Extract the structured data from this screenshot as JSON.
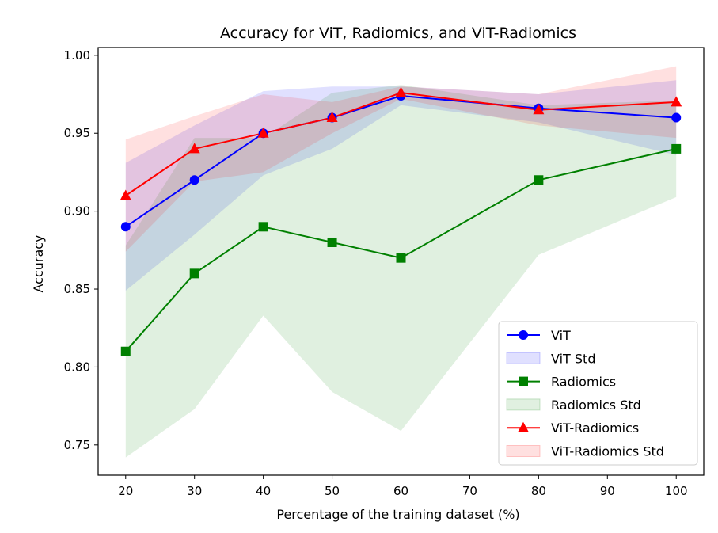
{
  "chart_data": {
    "type": "line",
    "title": "Accuracy for ViT, Radiomics, and ViT-Radiomics",
    "xlabel": "Percentage of the training dataset (%)",
    "ylabel": "Accuracy",
    "xlim": [
      16.0,
      104.0
    ],
    "ylim": [
      0.7306,
      1.005
    ],
    "xticks": [
      20,
      30,
      40,
      50,
      60,
      70,
      80,
      90,
      100
    ],
    "yticks": [
      0.75,
      0.8,
      0.85,
      0.9,
      0.95,
      1.0
    ],
    "ytick_labels": [
      "0.75",
      "0.80",
      "0.85",
      "0.90",
      "0.95",
      "1.00"
    ],
    "x": [
      20,
      30,
      40,
      50,
      60,
      80,
      100
    ],
    "legend_position": "lower-right",
    "series": [
      {
        "name": "ViT",
        "std_name": "ViT Std",
        "color": "#0000ff",
        "marker": "circle",
        "values": [
          0.89,
          0.92,
          0.95,
          0.96,
          0.974,
          0.966,
          0.96
        ],
        "lower": [
          0.849,
          0.885,
          0.923,
          0.94,
          0.968,
          0.957,
          0.936
        ],
        "upper": [
          0.931,
          0.955,
          0.977,
          0.98,
          0.98,
          0.975,
          0.984
        ]
      },
      {
        "name": "Radiomics",
        "std_name": "Radiomics Std",
        "color": "#008000",
        "marker": "square",
        "values": [
          0.81,
          0.86,
          0.89,
          0.88,
          0.87,
          0.92,
          0.94
        ],
        "lower": [
          0.742,
          0.773,
          0.833,
          0.784,
          0.759,
          0.872,
          0.909
        ],
        "upper": [
          0.878,
          0.947,
          0.947,
          0.976,
          0.981,
          0.968,
          0.971
        ]
      },
      {
        "name": "ViT-Radiomics",
        "std_name": "ViT-Radiomics Std",
        "color": "#ff0000",
        "marker": "triangle",
        "values": [
          0.91,
          0.94,
          0.95,
          0.96,
          0.976,
          0.965,
          0.97
        ],
        "lower": [
          0.874,
          0.919,
          0.925,
          0.95,
          0.972,
          0.955,
          0.947
        ],
        "upper": [
          0.946,
          0.961,
          0.975,
          0.97,
          0.98,
          0.975,
          0.993
        ]
      }
    ]
  }
}
